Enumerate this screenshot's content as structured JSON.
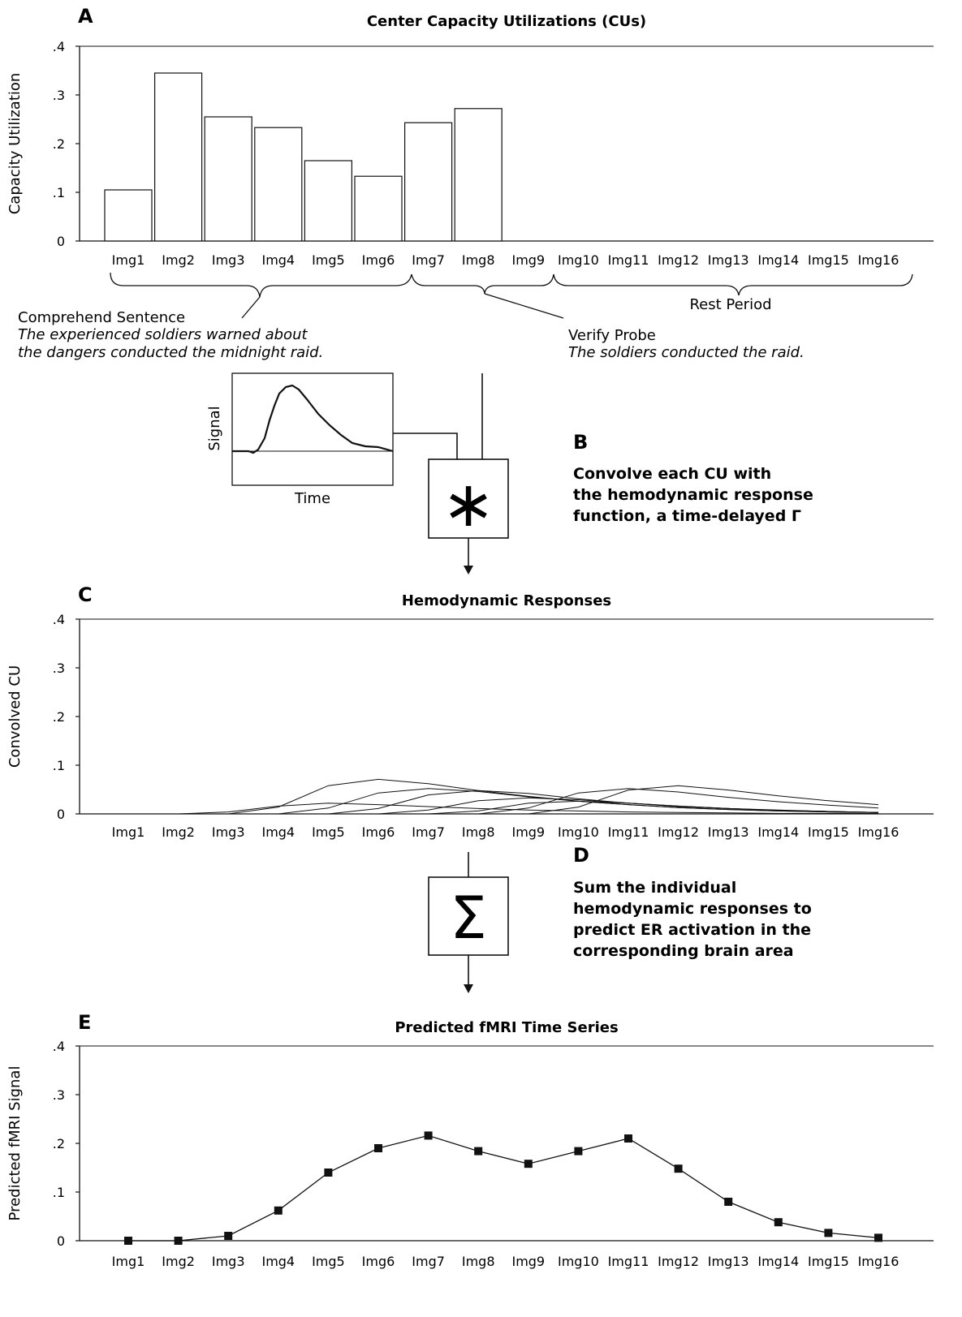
{
  "panels": {
    "a": {
      "letter": "A",
      "title": "Center Capacity Utilizations (CUs)"
    },
    "b": {
      "letter": "B",
      "lines": [
        "Convolve each CU with",
        "the hemodynamic response",
        "function, a time-delayed Γ"
      ]
    },
    "c": {
      "letter": "C",
      "title": "Hemodynamic Responses"
    },
    "d": {
      "letter": "D",
      "lines": [
        "Sum the individual",
        "hemodynamic responses to",
        "predict ER activation in the",
        "corresponding brain area"
      ]
    },
    "e": {
      "letter": "E",
      "title": "Predicted fMRI Time Series"
    }
  },
  "annotations": {
    "comprehend": {
      "label": "Comprehend Sentence",
      "line1": "The experienced soldiers warned about",
      "line2": "the dangers conducted the midnight raid."
    },
    "verify": {
      "label": "Verify Probe",
      "line1": "The soldiers conducted the raid."
    },
    "rest": {
      "label": "Rest Period"
    }
  },
  "inset": {
    "ylabel": "Signal",
    "xlabel": "Time"
  },
  "operators": {
    "convolve": "∗",
    "sum": "Σ"
  },
  "chart_data": [
    {
      "type": "bar",
      "title": "Center Capacity Utilizations (CUs)",
      "ylabel": "Capacity Utilization",
      "ylim": [
        0,
        0.4
      ],
      "yticks": [
        0,
        0.1,
        0.2,
        0.3,
        0.4
      ],
      "ytick_labels": [
        "0",
        ".1",
        ".2",
        ".3",
        ".4"
      ],
      "categories": [
        "Img1",
        "Img2",
        "Img3",
        "Img4",
        "Img5",
        "Img6",
        "Img7",
        "Img8",
        "Img9",
        "Img10",
        "Img11",
        "Img12",
        "Img13",
        "Img14",
        "Img15",
        "Img16"
      ],
      "values": [
        0.105,
        0.345,
        0.255,
        0.233,
        0.165,
        0.133,
        0.243,
        0.272,
        0,
        0,
        0,
        0,
        0,
        0,
        0,
        0
      ]
    },
    {
      "type": "line",
      "title": "Hemodynamic Responses",
      "ylabel": "Convolved CU",
      "ylim": [
        0,
        0.4
      ],
      "yticks": [
        0,
        0.1,
        0.2,
        0.3,
        0.4
      ],
      "ytick_labels": [
        "0",
        ".1",
        ".2",
        ".3",
        ".4"
      ],
      "categories": [
        "Img1",
        "Img2",
        "Img3",
        "Img4",
        "Img5",
        "Img6",
        "Img7",
        "Img8",
        "Img9",
        "Img10",
        "Img11",
        "Img12",
        "Img13",
        "Img14",
        "Img15",
        "Img16"
      ],
      "series": [
        {
          "values": [
            0,
            0,
            0.004,
            0.016,
            0.022,
            0.019,
            0.015,
            0.011,
            0.008,
            0.006,
            0.004,
            0.003,
            0.002,
            0.001,
            0.001,
            0.001
          ]
        },
        {
          "values": [
            0,
            0,
            0,
            0.014,
            0.058,
            0.071,
            0.062,
            0.048,
            0.036,
            0.026,
            0.019,
            0.013,
            0.009,
            0.006,
            0.004,
            0.003
          ]
        },
        {
          "values": [
            0,
            0,
            0,
            0,
            0.012,
            0.043,
            0.052,
            0.046,
            0.035,
            0.026,
            0.019,
            0.013,
            0.009,
            0.006,
            0.004,
            0.003
          ]
        },
        {
          "values": [
            0,
            0,
            0,
            0,
            0,
            0.011,
            0.039,
            0.048,
            0.042,
            0.031,
            0.022,
            0.015,
            0.011,
            0.007,
            0.005,
            0.003
          ]
        },
        {
          "values": [
            0,
            0,
            0,
            0,
            0,
            0,
            0.008,
            0.027,
            0.033,
            0.029,
            0.022,
            0.016,
            0.011,
            0.007,
            0.005,
            0.003
          ]
        },
        {
          "values": [
            0,
            0,
            0,
            0,
            0,
            0,
            0,
            0.006,
            0.022,
            0.026,
            0.022,
            0.016,
            0.011,
            0.008,
            0.005,
            0.003
          ]
        },
        {
          "values": [
            0,
            0,
            0,
            0,
            0,
            0,
            0,
            0,
            0.012,
            0.043,
            0.052,
            0.045,
            0.034,
            0.025,
            0.018,
            0.012
          ]
        },
        {
          "values": [
            0,
            0,
            0,
            0,
            0,
            0,
            0,
            0,
            0,
            0.014,
            0.049,
            0.058,
            0.049,
            0.037,
            0.027,
            0.019
          ]
        }
      ]
    },
    {
      "type": "line",
      "title": "Predicted fMRI Time Series",
      "ylabel": "Predicted fMRI Signal",
      "ylim": [
        0,
        0.4
      ],
      "yticks": [
        0,
        0.1,
        0.2,
        0.3,
        0.4
      ],
      "ytick_labels": [
        "0",
        ".1",
        ".2",
        ".3",
        ".4"
      ],
      "categories": [
        "Img1",
        "Img2",
        "Img3",
        "Img4",
        "Img5",
        "Img6",
        "Img7",
        "Img8",
        "Img9",
        "Img10",
        "Img11",
        "Img12",
        "Img13",
        "Img14",
        "Img15",
        "Img16"
      ],
      "values": [
        0,
        0,
        0.01,
        0.062,
        0.14,
        0.19,
        0.216,
        0.184,
        0.158,
        0.184,
        0.21,
        0.148,
        0.08,
        0.038,
        0.016,
        0.006
      ]
    }
  ]
}
